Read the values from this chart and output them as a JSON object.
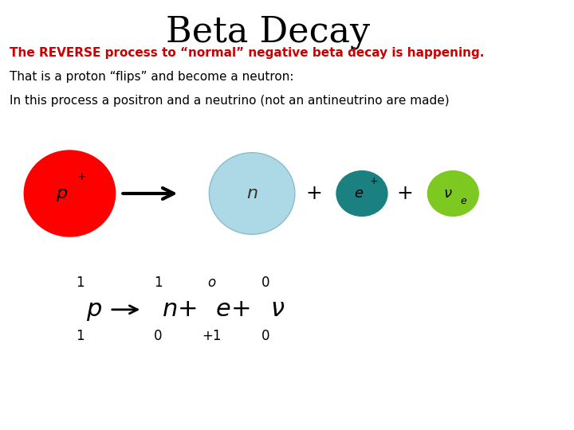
{
  "title": "Beta Decay",
  "title_fontsize": 32,
  "title_font": "serif",
  "line1": "The REVERSE process to “normal” negative beta decay is happening.",
  "line2": "That is a proton “flips” and become a neutron:",
  "line3": "In this process a positron and a neutrino (not an antineutrino are made)",
  "proton_color": "#ff0000",
  "neutron_color": "#add8e6",
  "positron_color": "#1a8080",
  "neutrino_color": "#7ec822",
  "background_color": "#ffffff",
  "arrow_color": "#000000",
  "text_color": "#000000",
  "red_text_color": "#cc0000"
}
